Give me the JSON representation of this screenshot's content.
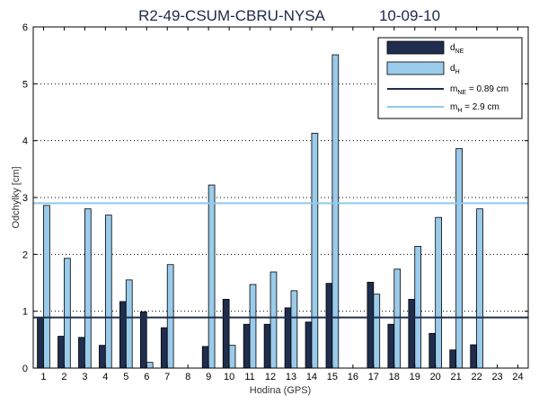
{
  "chart_data": {
    "type": "bar",
    "title": "R2-49-CSUM-CBRU-NYSA",
    "date": "10-09-10",
    "xlabel": "Hodina (GPS)",
    "ylabel": "Odchylky [cm]",
    "ylim": [
      0,
      6
    ],
    "xlim": [
      0.5,
      24.5
    ],
    "yticks": [
      "0",
      "1",
      "2",
      "3",
      "4",
      "5",
      "6"
    ],
    "categories": [
      "1",
      "2",
      "3",
      "4",
      "5",
      "6",
      "7",
      "8",
      "9",
      "10",
      "11",
      "12",
      "13",
      "14",
      "15",
      "16",
      "17",
      "18",
      "19",
      "20",
      "21",
      "22",
      "23",
      "24"
    ],
    "grid": "horizontal-dotted",
    "legend_position": "top-right",
    "series": [
      {
        "name": "d",
        "subscript": "NE",
        "color": "#1f2d4e",
        "values": [
          0.89,
          0.56,
          0.54,
          0.4,
          1.17,
          0.99,
          0.71,
          null,
          0.38,
          1.21,
          0.77,
          0.77,
          1.06,
          0.81,
          1.49,
          null,
          1.51,
          0.77,
          1.21,
          0.61,
          0.32,
          0.41,
          null,
          null
        ]
      },
      {
        "name": "d",
        "subscript": "H",
        "color": "#9acbeb",
        "values": [
          2.86,
          1.93,
          2.8,
          2.69,
          1.55,
          0.1,
          1.82,
          null,
          3.22,
          0.4,
          1.47,
          1.69,
          1.36,
          4.13,
          5.51,
          null,
          1.3,
          1.74,
          2.14,
          2.65,
          3.86,
          2.8,
          null,
          null
        ]
      }
    ],
    "reference_lines": [
      {
        "name": "m",
        "subscript": "NE",
        "suffix": " = 0.89 cm",
        "value": 0.89,
        "color": "#1f2d4e"
      },
      {
        "name": "m",
        "subscript": "H",
        "suffix": "  = 2.9 cm",
        "value": 2.9,
        "color": "#8ec9ec"
      }
    ]
  }
}
